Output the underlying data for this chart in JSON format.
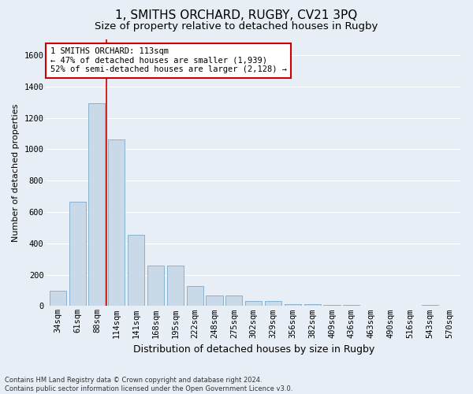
{
  "title": "1, SMITHS ORCHARD, RUGBY, CV21 3PQ",
  "subtitle": "Size of property relative to detached houses in Rugby",
  "xlabel": "Distribution of detached houses by size in Rugby",
  "ylabel": "Number of detached properties",
  "footnote1": "Contains HM Land Registry data © Crown copyright and database right 2024.",
  "footnote2": "Contains public sector information licensed under the Open Government Licence v3.0.",
  "annotation_line1": "1 SMITHS ORCHARD: 113sqm",
  "annotation_line2": "← 47% of detached houses are smaller (1,939)",
  "annotation_line3": "52% of semi-detached houses are larger (2,128) →",
  "bar_color": "#c9d9e8",
  "bar_edge_color": "#7aaac8",
  "marker_color": "#cc0000",
  "categories": [
    "34sqm",
    "61sqm",
    "88sqm",
    "114sqm",
    "141sqm",
    "168sqm",
    "195sqm",
    "222sqm",
    "248sqm",
    "275sqm",
    "302sqm",
    "329sqm",
    "356sqm",
    "382sqm",
    "409sqm",
    "436sqm",
    "463sqm",
    "490sqm",
    "516sqm",
    "543sqm",
    "570sqm"
  ],
  "values": [
    95,
    665,
    1295,
    1060,
    455,
    260,
    260,
    130,
    65,
    65,
    30,
    30,
    10,
    10,
    5,
    5,
    0,
    0,
    0,
    5,
    0
  ],
  "red_line_x": 2.5,
  "ylim": [
    0,
    1700
  ],
  "yticks": [
    0,
    200,
    400,
    600,
    800,
    1000,
    1200,
    1400,
    1600
  ],
  "bg_color": "#e8eef5",
  "plot_bg_color": "#e8eef5",
  "grid_color": "#ffffff",
  "title_fontsize": 11,
  "subtitle_fontsize": 9.5,
  "xlabel_fontsize": 9,
  "ylabel_fontsize": 8,
  "tick_fontsize": 7.5,
  "annot_fontsize": 7.5,
  "footnote_fontsize": 6
}
